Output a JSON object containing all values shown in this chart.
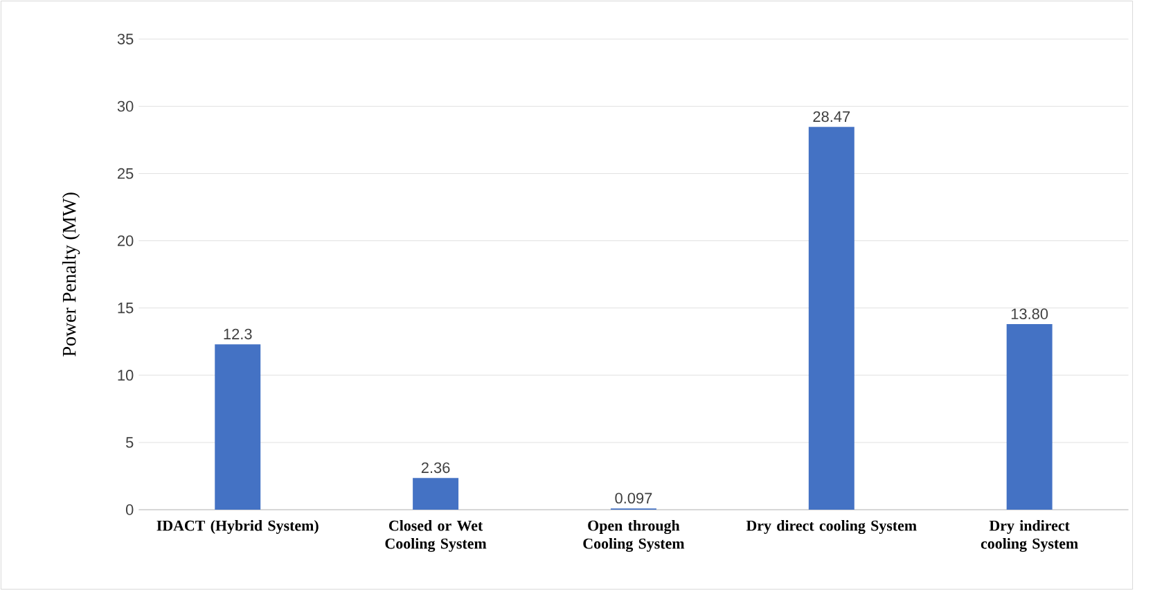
{
  "chart_data": {
    "type": "bar",
    "ylabel": "Power Penalty (MW)",
    "categories": [
      "IDACT (Hybrid System)",
      "Closed or Wet Cooling System",
      "Open through Cooling System",
      "Dry direct cooling System",
      "Dry indirect cooling System"
    ],
    "values": [
      12.3,
      2.36,
      0.097,
      28.47,
      13.8
    ],
    "value_labels": [
      "12.3",
      "2.36",
      "0.097",
      "28.47",
      "13.80"
    ],
    "color": "#4472c4",
    "ylim": [
      0,
      35
    ],
    "yticks": [
      0,
      5,
      10,
      15,
      20,
      25,
      30,
      35
    ],
    "grid": "y"
  }
}
